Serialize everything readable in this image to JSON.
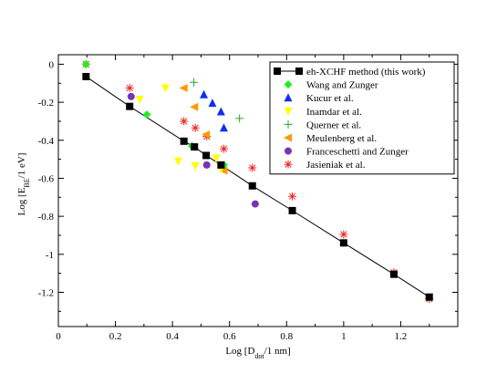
{
  "chart_data": {
    "type": "scatter",
    "xlabel": {
      "main": "Log [D",
      "sub": "dot",
      "tail": "/1 nm]"
    },
    "ylabel": {
      "main": "Log [E",
      "sub": "BE",
      "tail": "/1 eV]"
    },
    "xlim": [
      0,
      1.4
    ],
    "ylim": [
      -1.38,
      0.05
    ],
    "xticks": [
      0,
      0.2,
      0.4,
      0.6,
      0.8,
      1,
      1.2
    ],
    "xtick_labels": [
      "0",
      "0.2",
      "0.4",
      "0.6",
      "0.8",
      "1",
      "1.2"
    ],
    "yticks": [
      0,
      -0.2,
      -0.4,
      -0.6,
      -0.8,
      -1,
      -1.2
    ],
    "ytick_labels": [
      "0",
      "-0.2",
      "-0.4",
      "-0.6",
      "-0.8",
      "-1",
      "-1.2"
    ],
    "legend_position": "top-right",
    "series": [
      {
        "name": "eh-XCHF method (this work)",
        "marker": "square-line",
        "color": "#000000",
        "x": [
          0.097,
          0.25,
          0.44,
          0.477,
          0.518,
          0.57,
          0.68,
          0.82,
          1.0,
          1.176,
          1.3
        ],
        "y": [
          -0.065,
          -0.222,
          -0.405,
          -0.435,
          -0.48,
          -0.53,
          -0.64,
          -0.77,
          -0.94,
          -1.105,
          -1.225
        ]
      },
      {
        "name": "Wang and Zunger",
        "marker": "diamond",
        "color": "#22ee22",
        "x": [
          0.097,
          0.31,
          0.468,
          0.58
        ],
        "y": [
          0.0,
          -0.265,
          -0.43,
          -0.53
        ]
      },
      {
        "name": "Kucur et al.",
        "marker": "triangle-up",
        "color": "#1030ee",
        "x": [
          0.51,
          0.54,
          0.57,
          0.58
        ],
        "y": [
          -0.16,
          -0.205,
          -0.25,
          -0.335
        ]
      },
      {
        "name": "Inamdar et al.",
        "marker": "triangle-down",
        "color": "#ffff00",
        "x": [
          0.285,
          0.375,
          0.42,
          0.48,
          0.553,
          0.57
        ],
        "y": [
          -0.185,
          -0.125,
          -0.51,
          -0.535,
          -0.495,
          -0.55
        ]
      },
      {
        "name": "Querner et al.",
        "marker": "plus",
        "color": "#22aa22",
        "x": [
          0.475,
          0.635
        ],
        "y": [
          -0.095,
          -0.285
        ]
      },
      {
        "name": "Meulenberg et al.",
        "marker": "triangle-left",
        "color": "#ff9900",
        "x": [
          0.44,
          0.477,
          0.518,
          0.58
        ],
        "y": [
          -0.125,
          -0.225,
          -0.37,
          -0.56
        ]
      },
      {
        "name": "Franceschetti and Zunger",
        "marker": "circle",
        "color": "#7a33b4",
        "x": [
          0.255,
          0.52,
          0.69
        ],
        "y": [
          -0.17,
          -0.53,
          -0.735
        ]
      },
      {
        "name": "Jasieniak et al.",
        "marker": "asterisk",
        "color": "#ee2222",
        "x": [
          0.097,
          0.25,
          0.44,
          0.48,
          0.52,
          0.58,
          0.68,
          0.82,
          1.0,
          1.176,
          1.3
        ],
        "y": [
          0.0,
          -0.125,
          -0.3,
          -0.335,
          -0.38,
          -0.445,
          -0.545,
          -0.695,
          -0.895,
          -1.095,
          -1.235
        ]
      }
    ]
  }
}
